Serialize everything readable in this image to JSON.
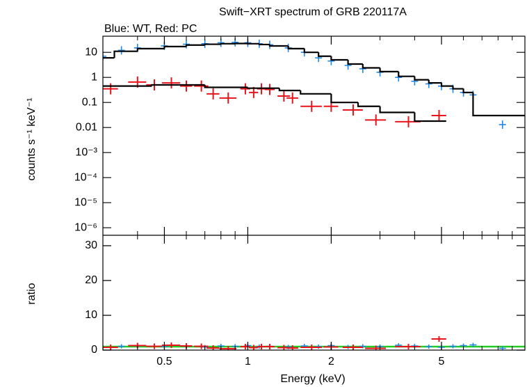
{
  "chart_data": {
    "type": "scatter",
    "title": "Swift−XRT spectrum of GRB 220117A",
    "subtitle": "Blue: WT, Red: PC",
    "xlabel": "Energy (keV)",
    "ylabel": "counts s⁻¹ keV⁻¹",
    "ratio_label": "ratio",
    "xscale": "log",
    "yscale": "log",
    "xlim": [
      0.3,
      10
    ],
    "xticks": [
      0.5,
      1,
      2,
      5
    ],
    "xticks_minor": [
      0.3,
      0.4,
      0.6,
      0.7,
      0.8,
      0.9,
      3,
      4,
      6,
      7,
      8,
      9,
      10
    ],
    "ylim": [
      5e-07,
      44
    ],
    "yticks": [
      10,
      1,
      0.1,
      0.01,
      {
        "value": 0.001,
        "label": "10⁻³"
      },
      {
        "value": 0.0001,
        "label": "10⁻⁴"
      },
      {
        "value": 1e-05,
        "label": "10⁻⁵"
      },
      {
        "value": 1e-06,
        "label": "10⁻⁶"
      }
    ],
    "ratio_ylim": [
      0,
      33
    ],
    "ratio_yticks": [
      0,
      10,
      20,
      30
    ],
    "ratio_reference": 1,
    "reference_color": "#22cc22",
    "series": [
      {
        "color": "#1f88e5",
        "x": [
          0.3,
          0.35,
          0.4,
          0.5,
          0.6,
          0.7,
          0.8,
          0.9,
          1.0,
          1.1,
          1.2,
          1.4,
          1.6,
          1.8,
          2.0,
          2.3,
          2.6,
          3.0,
          3.5,
          4.0,
          4.5,
          5.0,
          5.5,
          6.0,
          6.5,
          8.3
        ],
        "values": [
          7,
          12,
          15,
          18,
          21,
          22,
          24,
          25,
          24,
          22,
          20,
          15,
          10,
          6,
          4.5,
          3,
          2.2,
          1.6,
          1.0,
          0.7,
          0.55,
          0.45,
          0.35,
          0.25,
          0.2,
          0.013
        ],
        "ratio": [
          0.8,
          1.1,
          1.2,
          1.0,
          1.1,
          0.9,
          1.2,
          1.1,
          1.3,
          1.0,
          1.1,
          0.9,
          1.2,
          1.0,
          1.3,
          0.9,
          1.1,
          1.0,
          1.4,
          1.2,
          1.0,
          0.8,
          1.1,
          1.3,
          1.5,
          0.5
        ]
      },
      {
        "color": "#e8141c",
        "x": [
          0.32,
          0.4,
          0.46,
          0.53,
          0.6,
          0.68,
          0.75,
          0.85,
          0.98,
          1.05,
          1.12,
          1.2,
          1.35,
          1.45,
          1.7,
          2.0,
          2.4,
          2.9,
          3.8,
          4.9
        ],
        "xerr": [
          0.02,
          0.03,
          0.03,
          0.04,
          0.03,
          0.04,
          0.04,
          0.06,
          0.04,
          0.04,
          0.04,
          0.05,
          0.07,
          0.07,
          0.15,
          0.12,
          0.2,
          0.25,
          0.4,
          0.3
        ],
        "values": [
          0.35,
          0.65,
          0.5,
          0.6,
          0.45,
          0.45,
          0.22,
          0.15,
          0.35,
          0.25,
          0.35,
          0.33,
          0.18,
          0.15,
          0.07,
          0.07,
          0.05,
          0.02,
          0.017,
          0.03
        ],
        "ratio": [
          0.8,
          1.3,
          1.1,
          1.4,
          1.2,
          1.1,
          0.6,
          0.4,
          1.0,
          0.7,
          1.0,
          1.0,
          0.7,
          0.6,
          0.8,
          0.9,
          0.8,
          0.5,
          1.0,
          3.2
        ]
      }
    ],
    "models": [
      {
        "color": "#000000",
        "edges": [
          0.3,
          0.33,
          0.4,
          0.5,
          0.6,
          0.7,
          0.8,
          0.9,
          1.0,
          1.1,
          1.2,
          1.4,
          1.6,
          1.8,
          2.0,
          2.3,
          2.6,
          3.0,
          3.5,
          4.0,
          4.5,
          5.0,
          5.5,
          6.0,
          6.5,
          10
        ],
        "values": [
          6,
          11,
          14,
          17,
          19.5,
          21,
          22,
          22.5,
          22,
          20.5,
          18,
          14,
          10,
          7,
          5,
          3.4,
          2.4,
          1.7,
          1.1,
          0.8,
          0.6,
          0.45,
          0.35,
          0.25,
          0.03
        ]
      },
      {
        "color": "#000000",
        "edges": [
          0.3,
          0.45,
          0.7,
          1.0,
          1.3,
          1.55,
          2.0,
          2.5,
          3.0,
          4.0,
          5.2
        ],
        "values": [
          0.45,
          0.5,
          0.4,
          0.37,
          0.3,
          0.22,
          0.1,
          0.07,
          0.04,
          0.018
        ]
      }
    ]
  }
}
